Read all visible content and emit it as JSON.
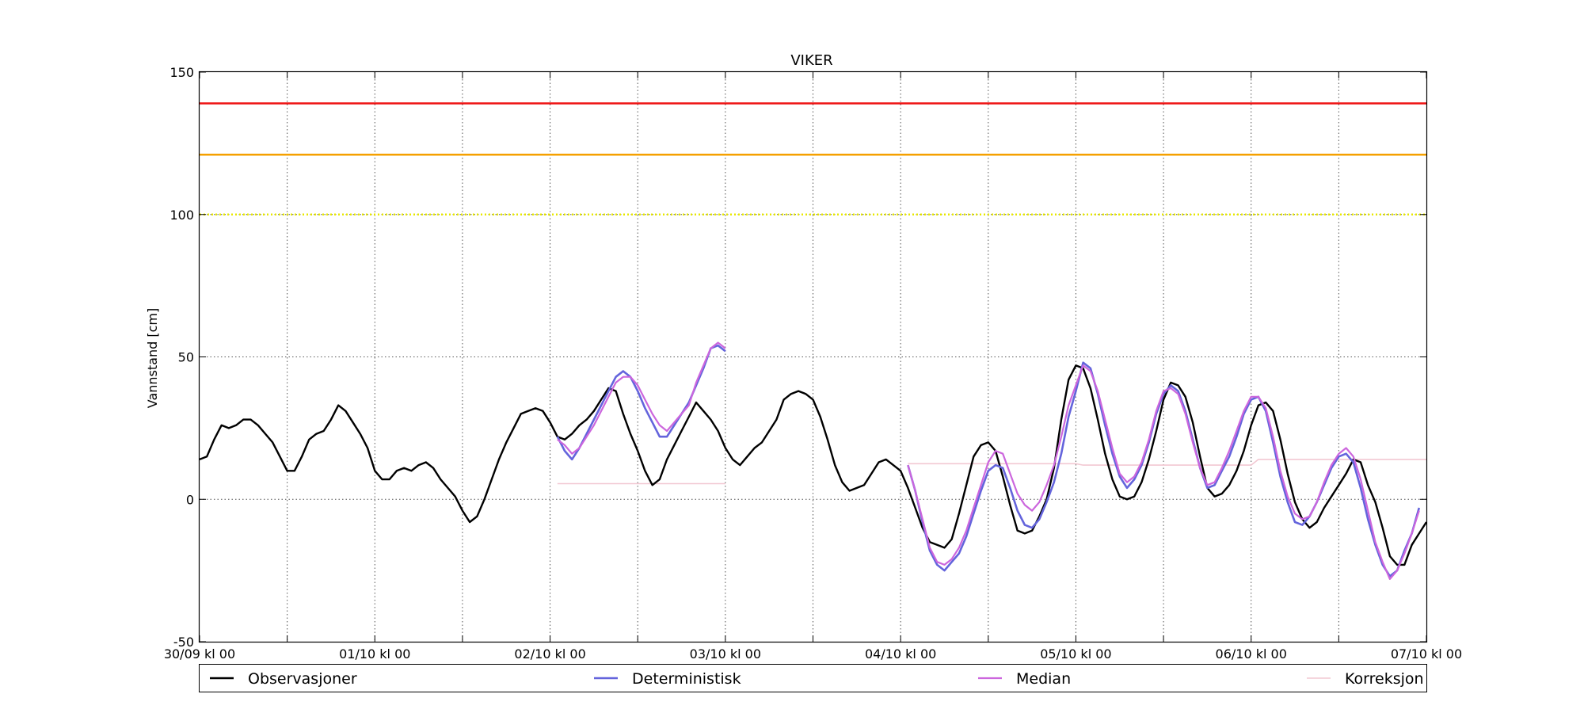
{
  "chart_data": {
    "type": "line",
    "title": "VIKER",
    "xlabel": "",
    "ylabel": "Vannstand [cm]",
    "ylim": [
      -50,
      150
    ],
    "xlim": [
      0,
      168
    ],
    "x_unit": "hours since 30/09 kl 00",
    "grid": true,
    "legend_position": "bottom",
    "yticks": [
      -50,
      0,
      50,
      100,
      150
    ],
    "xticks": [
      {
        "x": 0,
        "label": "30/09 kl 00"
      },
      {
        "x": 24,
        "label": "01/10 kl 00"
      },
      {
        "x": 48,
        "label": "02/10 kl 00"
      },
      {
        "x": 72,
        "label": "03/10 kl 00"
      },
      {
        "x": 96,
        "label": "04/10 kl 00"
      },
      {
        "x": 120,
        "label": "05/10 kl 00"
      },
      {
        "x": 144,
        "label": "06/10 kl 00"
      },
      {
        "x": 168,
        "label": "07/10 kl 00"
      }
    ],
    "minor_grid_x": [
      12,
      36,
      60,
      84,
      108,
      132,
      156
    ],
    "reference_lines": [
      {
        "value": 139,
        "color": "#ee1111",
        "style": "solid"
      },
      {
        "value": 121,
        "color": "#f5a000",
        "style": "solid"
      },
      {
        "value": 100,
        "color": "#e8e800",
        "style": "dotted"
      }
    ],
    "series": [
      {
        "name": "Observasjoner",
        "color": "#000000",
        "x": [
          0,
          1,
          2,
          3,
          4,
          5,
          6,
          7,
          8,
          9,
          10,
          11,
          12,
          13,
          14,
          15,
          16,
          17,
          18,
          19,
          20,
          21,
          22,
          23,
          24,
          25,
          26,
          27,
          28,
          29,
          30,
          31,
          32,
          33,
          34,
          35,
          36,
          37,
          38,
          39,
          40,
          41,
          42,
          43,
          44,
          45,
          46,
          47,
          48,
          49,
          50,
          51,
          52,
          53,
          54,
          55,
          56,
          57,
          58,
          59,
          60,
          61,
          62,
          63,
          64,
          65,
          66,
          67,
          68,
          69,
          70,
          71,
          72,
          73,
          74,
          75,
          76,
          77,
          78,
          79,
          80,
          81,
          82,
          83,
          84,
          85,
          86,
          87,
          88,
          89,
          90,
          91,
          92,
          93,
          94,
          95,
          96,
          97,
          98,
          99,
          100,
          101,
          102,
          103,
          104,
          105,
          106,
          107,
          108,
          109,
          110,
          111,
          112,
          113,
          114,
          115,
          116,
          117,
          118,
          119,
          120,
          121,
          122,
          123,
          124,
          125,
          126,
          127,
          128,
          129,
          130,
          131,
          132,
          133,
          134,
          135,
          136,
          137,
          138,
          139,
          140,
          141,
          142,
          143,
          144,
          145,
          146,
          147,
          148,
          149,
          150,
          151,
          152,
          153,
          154,
          155,
          156,
          157,
          158,
          159,
          160,
          161,
          162,
          163,
          164,
          165,
          166,
          167,
          168
        ],
        "values": [
          14,
          15,
          21,
          26,
          25,
          26,
          28,
          28,
          26,
          23,
          20,
          15,
          10,
          10,
          15,
          21,
          23,
          24,
          28,
          33,
          31,
          27,
          23,
          18,
          10,
          7,
          7,
          10,
          11,
          10,
          12,
          13,
          11,
          7,
          4,
          1,
          -4,
          -8,
          -6,
          0,
          7,
          14,
          20,
          25,
          30,
          31,
          32,
          31,
          27,
          22,
          21,
          23,
          26,
          28,
          31,
          35,
          39,
          38,
          30,
          23,
          17,
          10,
          5,
          7,
          14,
          19,
          24,
          29,
          34,
          31,
          28,
          24,
          18,
          14,
          12,
          15,
          18,
          20,
          24,
          28,
          35,
          37,
          38,
          37,
          35,
          29,
          21,
          12,
          6,
          3,
          4,
          5,
          9,
          13,
          14,
          12,
          10,
          4,
          -3,
          -10,
          -15,
          -16,
          -17,
          -14,
          -5,
          5,
          15,
          19,
          20,
          17,
          8,
          -2,
          -11,
          -12,
          -11,
          -6,
          0,
          11,
          28,
          42,
          47,
          46,
          39,
          28,
          16,
          7,
          1,
          0,
          1,
          6,
          14,
          24,
          35,
          41,
          40,
          36,
          27,
          15,
          4,
          1,
          2,
          5,
          10,
          17,
          26,
          33,
          34,
          31,
          21,
          9,
          -1,
          -7,
          -10,
          -8,
          -3,
          1,
          5,
          9,
          14,
          13,
          5,
          -1,
          -10,
          -20,
          -23,
          -23,
          -16,
          -12,
          -8
        ]
      },
      {
        "name": "Deterministisk",
        "color": "#6464dc",
        "x": [
          49,
          50,
          51,
          52,
          53,
          54,
          55,
          56,
          57,
          58,
          59,
          60,
          61,
          62,
          63,
          64,
          65,
          66,
          67,
          68,
          69,
          70,
          71,
          72
        ],
        "values": [
          22,
          17,
          14,
          18,
          23,
          28,
          33,
          38,
          43,
          45,
          43,
          38,
          32,
          27,
          22,
          22,
          26,
          30,
          34,
          40,
          46,
          53,
          54,
          52
        ],
        "x2": [
          97,
          98,
          99,
          100,
          101,
          102,
          103,
          104,
          105,
          106,
          107,
          108,
          109,
          110,
          111,
          112,
          113,
          114,
          115,
          116,
          117,
          118,
          119,
          120,
          121,
          122,
          123,
          124,
          125,
          126,
          127,
          128,
          129,
          130,
          131,
          132,
          133,
          134,
          135,
          136,
          137,
          138,
          139,
          140,
          141,
          142,
          143,
          144,
          145,
          146,
          147,
          148,
          149,
          150,
          151,
          152,
          153,
          154,
          155,
          156,
          157,
          158,
          159,
          160,
          161,
          162,
          163,
          164,
          165,
          166,
          167,
          168
        ],
        "values2": [
          12,
          3,
          -8,
          -18,
          -23,
          -25,
          -22,
          -19,
          -13,
          -5,
          3,
          10,
          12,
          11,
          4,
          -4,
          -9,
          -10,
          -7,
          -1,
          6,
          16,
          29,
          38,
          48,
          46,
          37,
          26,
          16,
          8,
          4,
          7,
          12,
          20,
          30,
          37,
          40,
          38,
          31,
          21,
          11,
          4,
          5,
          10,
          15,
          22,
          30,
          35,
          36,
          31,
          20,
          8,
          -1,
          -8,
          -9,
          -6,
          -1,
          5,
          11,
          15,
          16,
          13,
          4,
          -7,
          -16,
          -23,
          -27,
          -25,
          -18,
          -12,
          -3
        ]
      },
      {
        "name": "Median",
        "color": "#cc66dd",
        "x": [
          49,
          50,
          51,
          52,
          53,
          54,
          55,
          56,
          57,
          58,
          59,
          60,
          61,
          62,
          63,
          64,
          65,
          66,
          67,
          68,
          69,
          70,
          71,
          72
        ],
        "values": [
          21,
          19,
          16,
          18,
          22,
          26,
          31,
          36,
          41,
          43,
          43,
          40,
          35,
          30,
          26,
          24,
          27,
          30,
          33,
          41,
          47,
          53,
          55,
          53
        ],
        "x2": [
          97,
          98,
          99,
          100,
          101,
          102,
          103,
          104,
          105,
          106,
          107,
          108,
          109,
          110,
          111,
          112,
          113,
          114,
          115,
          116,
          117,
          118,
          119,
          120,
          121,
          122,
          123,
          124,
          125,
          126,
          127,
          128,
          129,
          130,
          131,
          132,
          133,
          134,
          135,
          136,
          137,
          138,
          139,
          140,
          141,
          142,
          143,
          144,
          145,
          146,
          147,
          148,
          149,
          150,
          151,
          152,
          153,
          154,
          155,
          156,
          157,
          158,
          159,
          160,
          161,
          162,
          163,
          164,
          165,
          166,
          167,
          168
        ],
        "values2": [
          12,
          3,
          -7,
          -17,
          -22,
          -23,
          -21,
          -17,
          -11,
          -3,
          5,
          13,
          17,
          16,
          9,
          2,
          -2,
          -4,
          -1,
          5,
          12,
          22,
          33,
          40,
          47,
          45,
          38,
          28,
          18,
          9,
          6,
          8,
          13,
          21,
          31,
          38,
          39,
          37,
          30,
          20,
          11,
          5,
          6,
          11,
          17,
          24,
          31,
          36,
          36,
          32,
          22,
          10,
          1,
          -5,
          -7,
          -6,
          -1,
          6,
          12,
          16,
          18,
          15,
          7,
          -4,
          -15,
          -22,
          -28,
          -25,
          -19,
          -12,
          -4
        ]
      },
      {
        "name": "Korreksjon",
        "color": "#f2c8d2",
        "x": [
          49,
          72
        ],
        "values": [
          5.5,
          5.5
        ],
        "x2": [
          97,
          120,
          121,
          136,
          137,
          144,
          145,
          168
        ],
        "values2": [
          12.5,
          12.5,
          12,
          12,
          12,
          12,
          14,
          14
        ]
      }
    ]
  }
}
